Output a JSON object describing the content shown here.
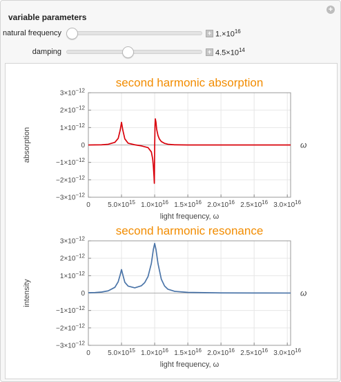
{
  "controls": {
    "heading": "variable parameters",
    "natural_frequency": {
      "label": "natural frequency",
      "value_mantissa": "1.×10",
      "value_exp": "16",
      "fraction": 0.0
    },
    "damping": {
      "label": "damping",
      "value_mantissa": "4.5×10",
      "value_exp": "14",
      "fraction": 0.45
    }
  },
  "chart_data": [
    {
      "type": "line",
      "title": "second harmonic absorption",
      "xlabel": "light frequency, ω",
      "ylabel": "absorption",
      "right_label": "ω",
      "xlim": [
        0,
        3.05e+16
      ],
      "ylim": [
        -3e-12,
        3e-12
      ],
      "x_ticks": [
        {
          "v": 0,
          "m": "0",
          "e": ""
        },
        {
          "v": 5000000000000000.0,
          "m": "5.0×10",
          "e": "15"
        },
        {
          "v": 1e+16,
          "m": "1.0×10",
          "e": "16"
        },
        {
          "v": 1.5e+16,
          "m": "1.5×10",
          "e": "16"
        },
        {
          "v": 2e+16,
          "m": "2.0×10",
          "e": "16"
        },
        {
          "v": 2.5e+16,
          "m": "2.5×10",
          "e": "16"
        },
        {
          "v": 3e+16,
          "m": "3.0×10",
          "e": "16"
        }
      ],
      "y_ticks": [
        {
          "v": 3e-12,
          "m": "3×10",
          "e": "−12"
        },
        {
          "v": 2e-12,
          "m": "2×10",
          "e": "−12"
        },
        {
          "v": 1e-12,
          "m": "1×10",
          "e": "−12"
        },
        {
          "v": 0,
          "m": "0",
          "e": ""
        },
        {
          "v": -1e-12,
          "m": "−1×10",
          "e": "−12"
        },
        {
          "v": -2e-12,
          "m": "−2×10",
          "e": "−12"
        },
        {
          "v": -3e-12,
          "m": "−3×10",
          "e": "−12"
        }
      ],
      "color": "#d9000a",
      "series": [
        {
          "x": [
            0,
            2000000000000000.0,
            3000000000000000.0,
            4000000000000000.0,
            4500000000000000.0,
            4800000000000000.0,
            5000000000000000.0,
            5200000000000000.0,
            5500000000000000.0,
            6000000000000000.0,
            7000000000000000.0,
            8000000000000000.0,
            9000000000000000.0,
            9500000000000000.0,
            9700000000000000.0,
            9800000000000000.0,
            9900000000000000.0,
            9950000000000000.0,
            1e+16,
            1.005e+16,
            1.01e+16,
            1.02e+16,
            1.03e+16,
            1.05e+16,
            1.07e+16,
            1.1e+16,
            1.15e+16,
            1.2e+16,
            1.3e+16,
            1.5e+16,
            2e+16,
            2.5e+16,
            3.05e+16
          ],
          "y": [
            0,
            1e-14,
            4e-14,
            1.5e-13,
            3.8e-13,
            8.5e-13,
            1.3e-12,
            8.5e-13,
            3.5e-13,
            1e-13,
            1e-14,
            -5e-14,
            -1.5e-13,
            -4e-13,
            -8e-13,
            -1.2e-12,
            -1.8e-12,
            -2.2e-12,
            -1e-13,
            1.1e-12,
            1.5e-12,
            1.3e-12,
            9e-13,
            5.5e-13,
            3.5e-13,
            2e-13,
            9e-14,
            4e-14,
            1e-14,
            0,
            0,
            0,
            0
          ]
        }
      ]
    },
    {
      "type": "line",
      "title": "second harmonic resonance",
      "xlabel": "light frequency, ω",
      "ylabel": "intensity",
      "right_label": "ω",
      "xlim": [
        0,
        3.05e+16
      ],
      "ylim": [
        -3e-12,
        3e-12
      ],
      "x_ticks": [
        {
          "v": 0,
          "m": "0",
          "e": ""
        },
        {
          "v": 5000000000000000.0,
          "m": "5.0×10",
          "e": "15"
        },
        {
          "v": 1e+16,
          "m": "1.0×10",
          "e": "16"
        },
        {
          "v": 1.5e+16,
          "m": "1.5×10",
          "e": "16"
        },
        {
          "v": 2e+16,
          "m": "2.0×10",
          "e": "16"
        },
        {
          "v": 2.5e+16,
          "m": "2.5×10",
          "e": "16"
        },
        {
          "v": 3e+16,
          "m": "3.0×10",
          "e": "16"
        }
      ],
      "y_ticks": [
        {
          "v": 3e-12,
          "m": "3×10",
          "e": "−12"
        },
        {
          "v": 2e-12,
          "m": "2×10",
          "e": "−12"
        },
        {
          "v": 1e-12,
          "m": "1×10",
          "e": "−12"
        },
        {
          "v": 0,
          "m": "0",
          "e": ""
        },
        {
          "v": -1e-12,
          "m": "−1×10",
          "e": "−12"
        },
        {
          "v": -2e-12,
          "m": "−2×10",
          "e": "−12"
        },
        {
          "v": -3e-12,
          "m": "−3×10",
          "e": "−12"
        }
      ],
      "color": "#4a74a8",
      "series": [
        {
          "x": [
            0,
            1000000000000000.0,
            2000000000000000.0,
            3000000000000000.0,
            4000000000000000.0,
            4500000000000000.0,
            4800000000000000.0,
            5000000000000000.0,
            5200000000000000.0,
            5500000000000000.0,
            6000000000000000.0,
            7000000000000000.0,
            8000000000000000.0,
            8500000000000000.0,
            9000000000000000.0,
            9500000000000000.0,
            9800000000000000.0,
            1e+16,
            1.02e+16,
            1.05e+16,
            1.1e+16,
            1.15e+16,
            1.2e+16,
            1.3e+16,
            1.5e+16,
            2e+16,
            2.5e+16,
            3.05e+16
          ],
          "y": [
            2e-14,
            3e-14,
            6e-14,
            1.3e-13,
            3.3e-13,
            6.5e-13,
            1.05e-12,
            1.35e-12,
            1.05e-12,
            6.2e-13,
            4e-13,
            3e-13,
            4.2e-13,
            6e-13,
            9.5e-13,
            1.7e-12,
            2.5e-12,
            2.85e-12,
            2.5e-12,
            1.7e-12,
            8e-13,
            4e-13,
            2.2e-13,
            1e-13,
            4e-14,
            1e-14,
            5e-15,
            3e-15
          ]
        }
      ]
    }
  ]
}
